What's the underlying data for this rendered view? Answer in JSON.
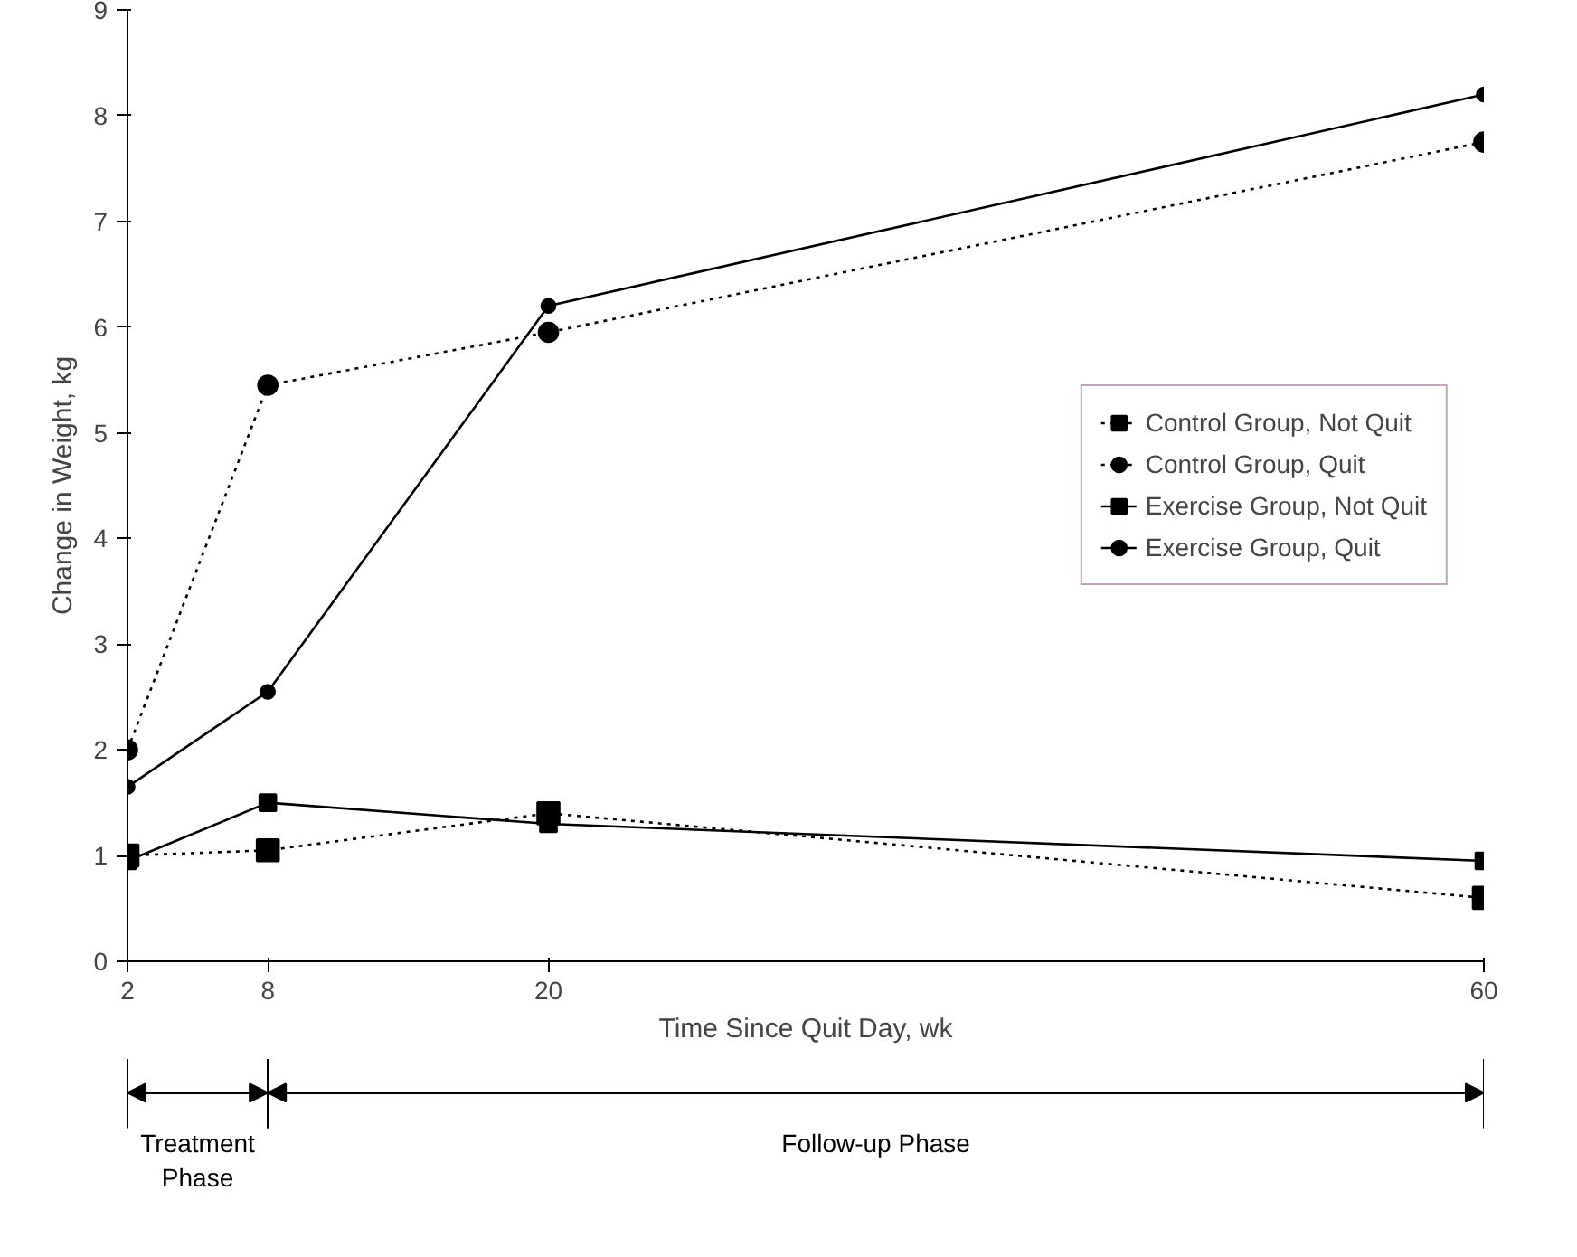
{
  "chart_data": {
    "type": "line",
    "xlabel": "Time Since Quit Day, wk",
    "ylabel": "Change in Weight, kg",
    "x": [
      2,
      8,
      20,
      60
    ],
    "xlim": [
      2,
      60
    ],
    "xticks": [
      2,
      8,
      20,
      60
    ],
    "ylim": [
      0,
      9
    ],
    "yticks": [
      0,
      1,
      2,
      3,
      4,
      5,
      6,
      7,
      8,
      9
    ],
    "legend": "right",
    "grid": false,
    "series": [
      {
        "name": "Control Group, Not Quit",
        "color": "#000000",
        "marker": "square",
        "line_style": "dotted",
        "values": [
          1.0,
          1.05,
          1.4,
          0.6
        ]
      },
      {
        "name": "Control Group, Quit",
        "color": "#000000",
        "marker": "circle",
        "line_style": "dotted",
        "values": [
          2.0,
          5.45,
          5.95,
          7.75
        ]
      },
      {
        "name": "Exercise Group, Not Quit",
        "color": "#000000",
        "marker": "square",
        "line_style": "solid",
        "values": [
          0.95,
          1.5,
          1.3,
          0.95
        ]
      },
      {
        "name": "Exercise Group, Quit",
        "color": "#000000",
        "marker": "circle",
        "line_style": "solid",
        "values": [
          1.65,
          2.55,
          6.2,
          8.2
        ]
      }
    ],
    "annotations": [
      "Treatment Phase",
      "Follow-up Phase"
    ]
  }
}
